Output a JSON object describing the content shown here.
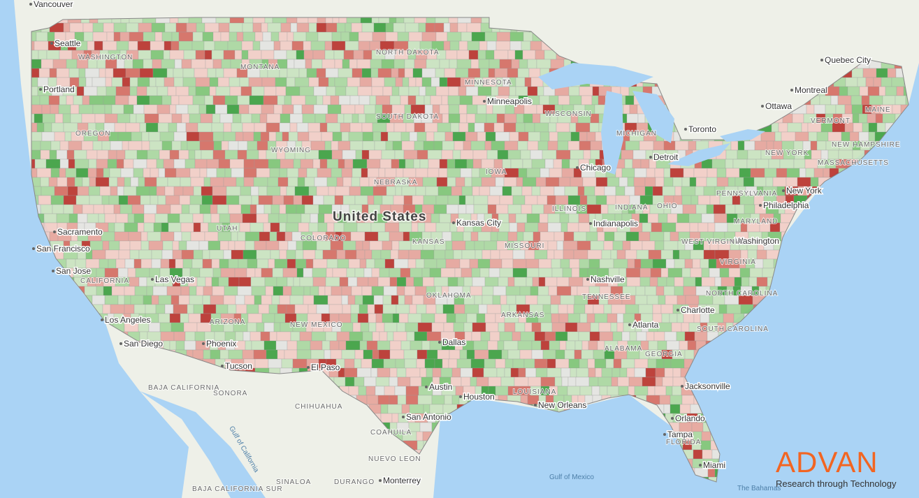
{
  "map": {
    "country_label": "United States",
    "places": [
      "Vancouver",
      "Seattle",
      "Portland",
      "Sacramento",
      "San Francisco",
      "San Jose",
      "Las Vegas",
      "Los Angeles",
      "San Diego",
      "Phoenix",
      "Tucson",
      "El Paso",
      "Dallas",
      "Austin",
      "Houston",
      "San Antonio",
      "New Orleans",
      "Kansas City",
      "Minneapolis",
      "Chicago",
      "Detroit",
      "Indianapolis",
      "Nashville",
      "Atlanta",
      "Charlotte",
      "Jacksonville",
      "Orlando",
      "Tampa",
      "Miami",
      "Washington",
      "Philadelphia",
      "New York",
      "Toronto",
      "Ottawa",
      "Montreal",
      "Quebec City",
      "Monterrey"
    ],
    "regions": [
      "WASHINGTON",
      "OREGON",
      "CALIFORNIA",
      "MONTANA",
      "WYOMING",
      "NORTH DAKOTA",
      "SOUTH DAKOTA",
      "NEBRASKA",
      "UTAH",
      "COLORADO",
      "ARIZONA",
      "NEW MEXICO",
      "KANSAS",
      "OKLAHOMA",
      "MINNESOTA",
      "IOWA",
      "MISSOURI",
      "ARKANSAS",
      "LOUISIANA",
      "WISCONSIN",
      "MICHIGAN",
      "ILLINOIS",
      "INDIANA",
      "OHIO",
      "TENNESSEE",
      "ALABAMA",
      "GEORGIA",
      "NORTH CAROLINA",
      "SOUTH CAROLINA",
      "WEST VIRGINIA",
      "VIRGINIA",
      "PENNSYLVANIA",
      "MARYLAND",
      "NEW YORK",
      "VERMONT",
      "NEW HAMPSHIRE",
      "MASSACHUSETTS",
      "MAINE",
      "FLORIDA",
      "BAJA CALIFORNIA",
      "SONORA",
      "CHIHUAHUA",
      "COAHUILA",
      "NUEVO LEON",
      "SINALOA",
      "DURANGO",
      "BAJA CALIFORNIA SUR"
    ],
    "water": [
      "Gulf of California",
      "Gulf of Mexico",
      "The Bahamas"
    ]
  },
  "logo": {
    "name": "ADVAN",
    "tagline": "Research through Technology"
  }
}
